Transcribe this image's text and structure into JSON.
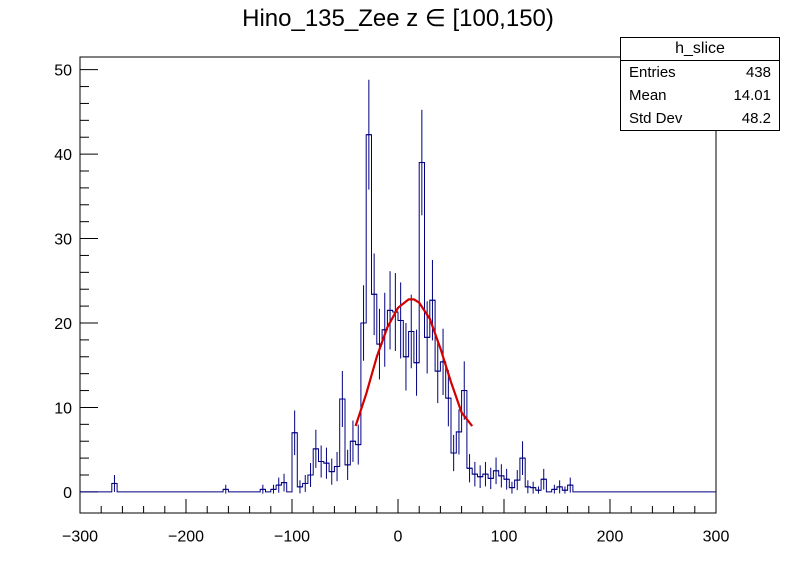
{
  "chart_data": {
    "type": "histogram",
    "title": "Hino_135_Zee z  ∈ [100,150)",
    "xlim": [
      -300,
      300
    ],
    "ylim": [
      -2.5,
      51.5
    ],
    "x_ticks": [
      -300,
      -200,
      -100,
      0,
      100,
      200,
      300
    ],
    "y_ticks": [
      0,
      10,
      20,
      30,
      40,
      50
    ],
    "grid": false,
    "bin_width": 5,
    "line_color": "#000080",
    "fit_color": "#d40000",
    "bins": [
      {
        "x": -270,
        "y": 1
      },
      {
        "x": -165,
        "y": 0.3
      },
      {
        "x": -130,
        "y": 0.3
      },
      {
        "x": -120,
        "y": 0.3
      },
      {
        "x": -115,
        "y": 0.8
      },
      {
        "x": -110,
        "y": 1.1
      },
      {
        "x": -100,
        "y": 7
      },
      {
        "x": -95,
        "y": 0.6
      },
      {
        "x": -90,
        "y": 1
      },
      {
        "x": -85,
        "y": 2
      },
      {
        "x": -80,
        "y": 5.1
      },
      {
        "x": -75,
        "y": 3.6
      },
      {
        "x": -70,
        "y": 3.4
      },
      {
        "x": -65,
        "y": 2.4
      },
      {
        "x": -60,
        "y": 3
      },
      {
        "x": -55,
        "y": 11
      },
      {
        "x": -50,
        "y": 3.2
      },
      {
        "x": -45,
        "y": 6
      },
      {
        "x": -40,
        "y": 5.6
      },
      {
        "x": -35,
        "y": 20
      },
      {
        "x": -30,
        "y": 42.3
      },
      {
        "x": -25,
        "y": 23.4
      },
      {
        "x": -20,
        "y": 17.5
      },
      {
        "x": -15,
        "y": 19.2
      },
      {
        "x": -10,
        "y": 21.5
      },
      {
        "x": -5,
        "y": 21.3
      },
      {
        "x": 0,
        "y": 20.3
      },
      {
        "x": 5,
        "y": 16
      },
      {
        "x": 10,
        "y": 19
      },
      {
        "x": 15,
        "y": 15.3
      },
      {
        "x": 20,
        "y": 39
      },
      {
        "x": 25,
        "y": 18.3
      },
      {
        "x": 30,
        "y": 22.7
      },
      {
        "x": 35,
        "y": 14.3
      },
      {
        "x": 40,
        "y": 15.4
      },
      {
        "x": 45,
        "y": 11.1
      },
      {
        "x": 50,
        "y": 4.6
      },
      {
        "x": 55,
        "y": 7.1
      },
      {
        "x": 60,
        "y": 12
      },
      {
        "x": 65,
        "y": 2.8
      },
      {
        "x": 70,
        "y": 2.1
      },
      {
        "x": 75,
        "y": 1.8
      },
      {
        "x": 80,
        "y": 2.1
      },
      {
        "x": 85,
        "y": 1.6
      },
      {
        "x": 90,
        "y": 2.5
      },
      {
        "x": 95,
        "y": 1.9
      },
      {
        "x": 100,
        "y": 1.5
      },
      {
        "x": 105,
        "y": 0.5
      },
      {
        "x": 110,
        "y": 1.4
      },
      {
        "x": 115,
        "y": 4
      },
      {
        "x": 120,
        "y": 0.6
      },
      {
        "x": 125,
        "y": 0.5
      },
      {
        "x": 130,
        "y": 0.2
      },
      {
        "x": 135,
        "y": 1.5
      },
      {
        "x": 145,
        "y": 0.3
      },
      {
        "x": 150,
        "y": 0.6
      },
      {
        "x": 155,
        "y": 0.2
      },
      {
        "x": 160,
        "y": 0.8
      }
    ],
    "fit": {
      "x_start": -40,
      "x_end": 70,
      "points": [
        [
          -40,
          7.8
        ],
        [
          -30,
          11.6
        ],
        [
          -20,
          16
        ],
        [
          -10,
          19.5
        ],
        [
          0,
          21.8
        ],
        [
          10,
          22.8
        ],
        [
          15,
          22.8
        ],
        [
          20,
          22.4
        ],
        [
          30,
          20.5
        ],
        [
          40,
          17
        ],
        [
          50,
          13
        ],
        [
          60,
          9.4
        ],
        [
          70,
          7.8
        ]
      ]
    },
    "stats_box": {
      "name": "h_slice",
      "rows": [
        {
          "label": "Entries",
          "value": "438"
        },
        {
          "label": "Mean",
          "value": "14.01"
        },
        {
          "label": "Std Dev",
          "value": "48.2"
        }
      ]
    }
  }
}
